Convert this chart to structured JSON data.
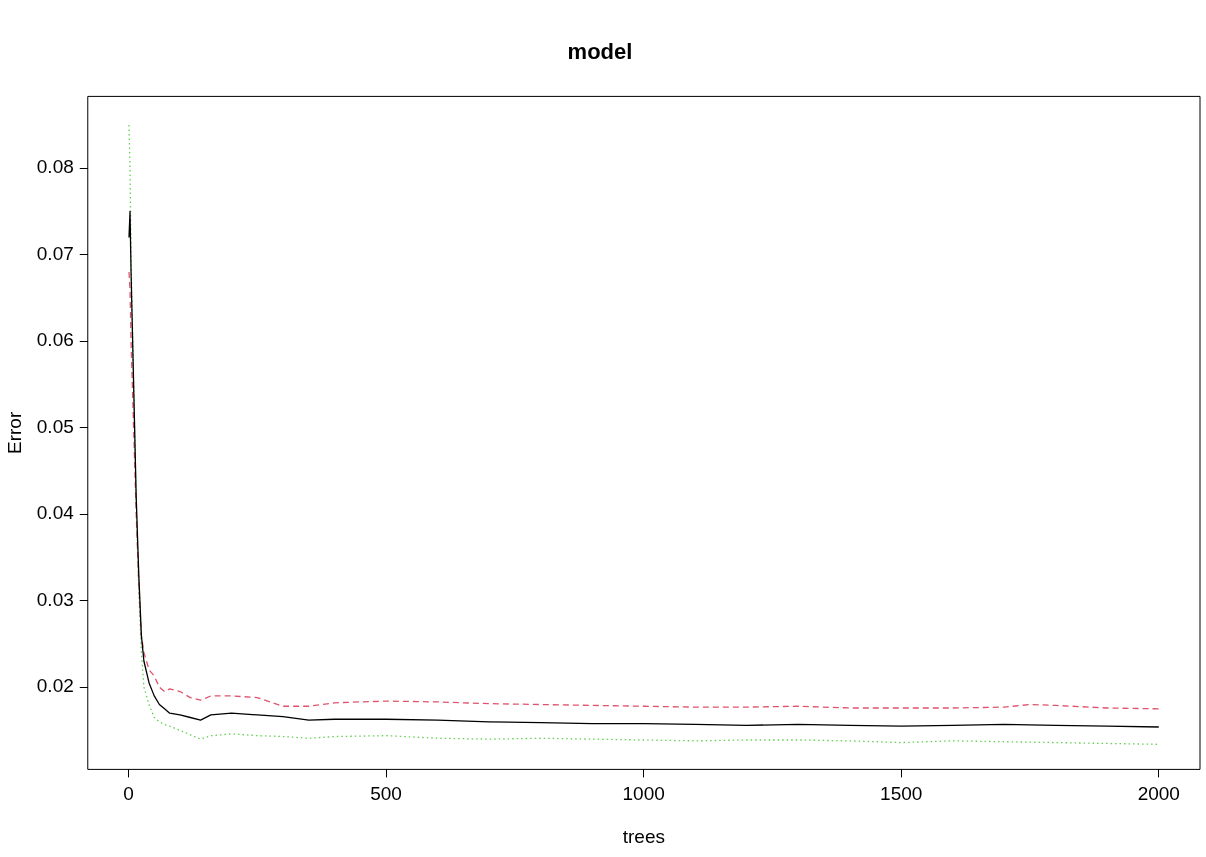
{
  "chart_data": {
    "type": "line",
    "title": "model",
    "xlabel": "trees",
    "ylabel": "Error",
    "xlim": [
      -79,
      2080
    ],
    "ylim": [
      0.0105,
      0.0883
    ],
    "xticks": [
      0,
      500,
      1000,
      1500,
      2000
    ],
    "yticks": [
      0.02,
      0.03,
      0.04,
      0.05,
      0.06,
      0.07,
      0.08
    ],
    "grid": false,
    "legend": false,
    "marker": "none",
    "series": [
      {
        "color": "#000000",
        "line_style": "solid",
        "x": [
          1,
          3,
          5,
          10,
          15,
          20,
          25,
          30,
          40,
          50,
          60,
          70,
          80,
          100,
          120,
          140,
          160,
          200,
          250,
          300,
          350,
          400,
          500,
          600,
          700,
          800,
          900,
          1000,
          1100,
          1200,
          1300,
          1400,
          1500,
          1600,
          1700,
          1800,
          1900,
          2000
        ],
        "values": [
          0.072,
          0.075,
          0.068,
          0.055,
          0.042,
          0.033,
          0.026,
          0.023,
          0.0205,
          0.019,
          0.018,
          0.0175,
          0.017,
          0.0168,
          0.0165,
          0.0162,
          0.0168,
          0.017,
          0.0168,
          0.0166,
          0.0162,
          0.0163,
          0.0163,
          0.0162,
          0.016,
          0.0159,
          0.0158,
          0.0158,
          0.0157,
          0.0156,
          0.0157,
          0.0156,
          0.0155,
          0.0156,
          0.0157,
          0.0156,
          0.0155,
          0.0154
        ]
      },
      {
        "color": "#df536b",
        "line_style": "dashed",
        "x": [
          1,
          3,
          5,
          10,
          15,
          20,
          25,
          30,
          40,
          50,
          60,
          70,
          80,
          100,
          120,
          140,
          160,
          200,
          250,
          300,
          350,
          400,
          500,
          600,
          700,
          800,
          900,
          1000,
          1100,
          1200,
          1300,
          1400,
          1500,
          1600,
          1700,
          1750,
          1800,
          1900,
          2000
        ],
        "values": [
          0.068,
          0.066,
          0.06,
          0.05,
          0.04,
          0.032,
          0.026,
          0.024,
          0.022,
          0.0213,
          0.02,
          0.0195,
          0.0198,
          0.0195,
          0.0188,
          0.0185,
          0.019,
          0.019,
          0.0188,
          0.0178,
          0.0178,
          0.0182,
          0.0184,
          0.0183,
          0.0181,
          0.018,
          0.0179,
          0.0178,
          0.0177,
          0.0177,
          0.0178,
          0.0176,
          0.0176,
          0.0176,
          0.0177,
          0.018,
          0.0179,
          0.0176,
          0.0175
        ]
      },
      {
        "color": "#61d04f",
        "line_style": "dotted",
        "x": [
          1,
          3,
          5,
          10,
          15,
          20,
          25,
          30,
          40,
          50,
          60,
          70,
          80,
          100,
          120,
          140,
          160,
          200,
          250,
          300,
          350,
          400,
          500,
          600,
          700,
          800,
          900,
          1000,
          1100,
          1200,
          1300,
          1400,
          1500,
          1600,
          1700,
          1800,
          1900,
          2000
        ],
        "values": [
          0.085,
          0.08,
          0.07,
          0.055,
          0.041,
          0.031,
          0.024,
          0.02,
          0.018,
          0.0165,
          0.016,
          0.0157,
          0.0155,
          0.015,
          0.0145,
          0.014,
          0.0144,
          0.0146,
          0.0144,
          0.0143,
          0.0141,
          0.0143,
          0.0144,
          0.0141,
          0.014,
          0.0141,
          0.014,
          0.0139,
          0.0138,
          0.0139,
          0.0139,
          0.0138,
          0.0136,
          0.0138,
          0.0137,
          0.0136,
          0.0135,
          0.0134
        ]
      }
    ]
  }
}
